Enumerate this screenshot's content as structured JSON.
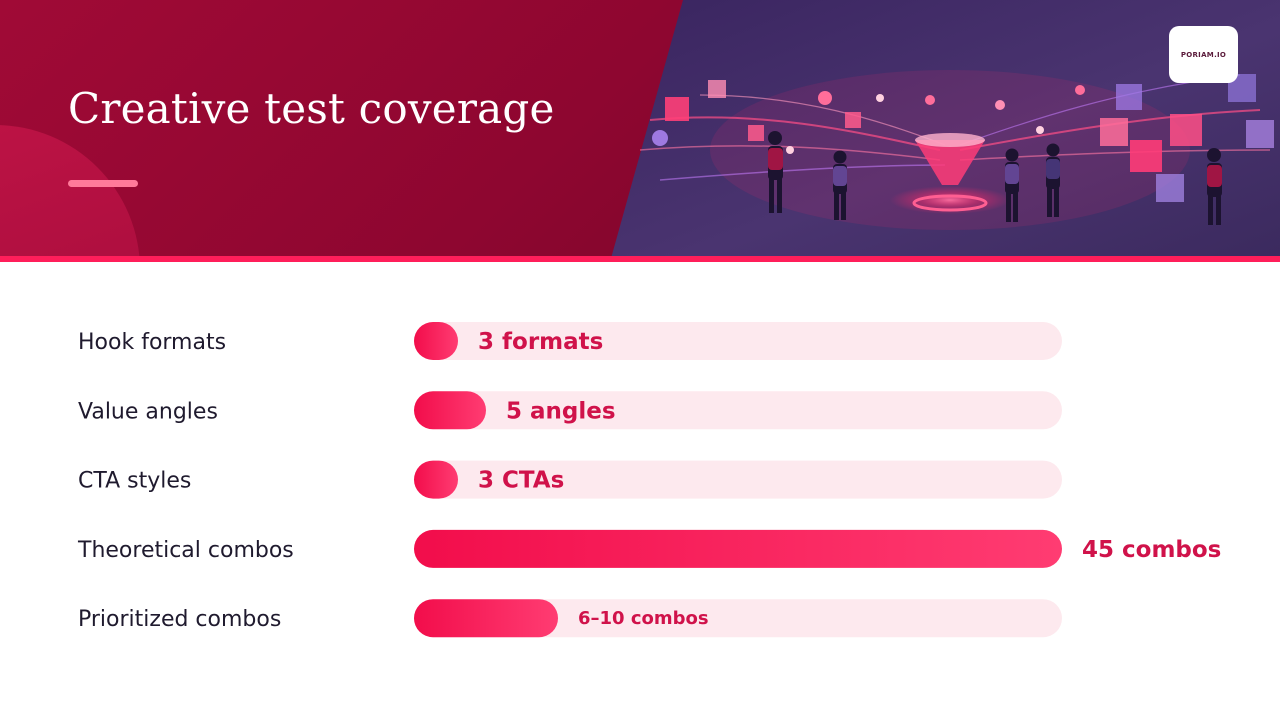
{
  "header": {
    "title": "Creative test coverage",
    "logo_text": "PORIAM.IO"
  },
  "colors": {
    "header_dark": "#8e0630",
    "accent": "#ff1e5a",
    "track": "#fde9ee",
    "bar_start": "#f20d4b",
    "bar_end": "#ff3c72",
    "value_text": "#d0124a",
    "label_text": "#1f1a2e"
  },
  "chart_data": {
    "type": "bar",
    "orientation": "horizontal",
    "title": "Creative test coverage",
    "categories": [
      "Hook formats",
      "Value angles",
      "CTA styles",
      "Theoretical combos",
      "Prioritized combos"
    ],
    "values": [
      3,
      5,
      3,
      45,
      10
    ],
    "value_labels": [
      "3 formats",
      "5 angles",
      "3 CTAs",
      "45 combos",
      "6–10 combos"
    ],
    "xlim": [
      0,
      45
    ],
    "grid": false,
    "legend": "none"
  }
}
